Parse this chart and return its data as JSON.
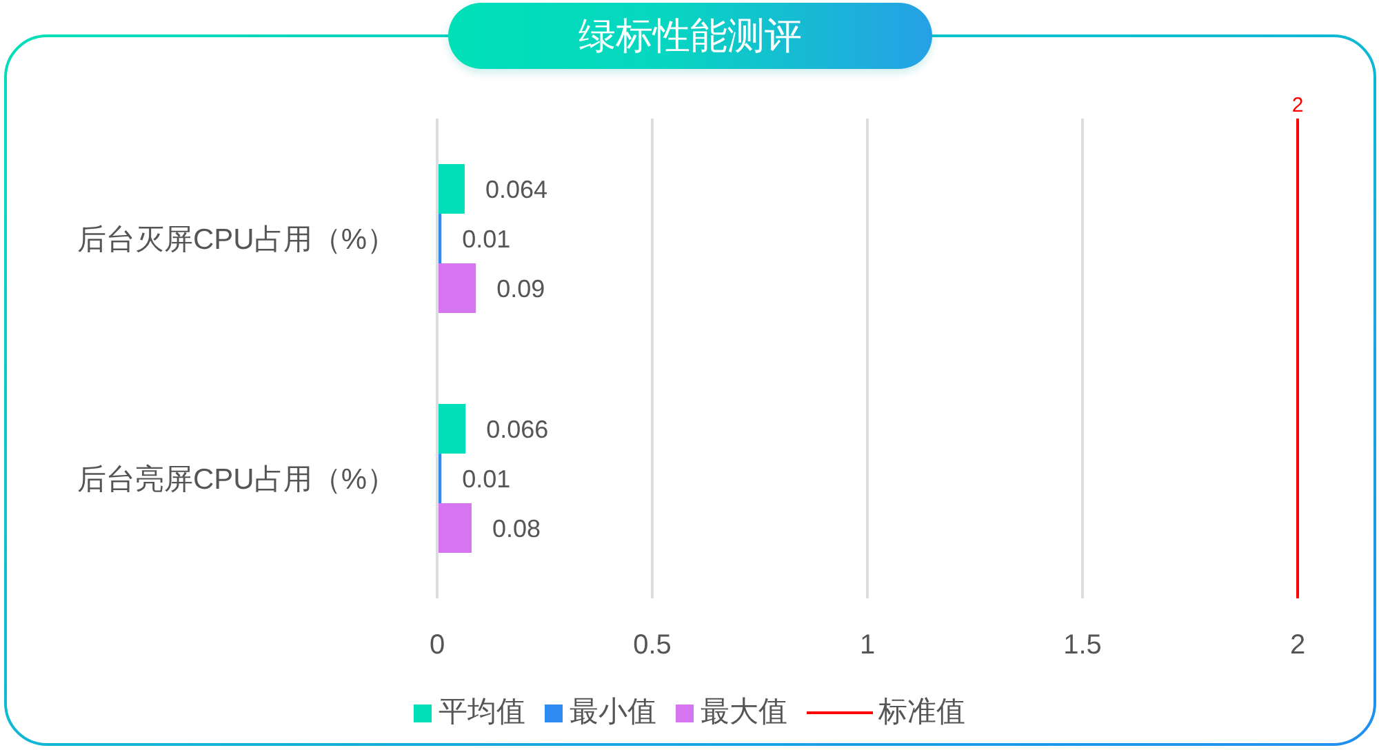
{
  "chart_data": {
    "type": "bar",
    "orientation": "horizontal",
    "title": "绿标性能测评",
    "categories": [
      "后台灭屏CPU占用（%）",
      "后台亮屏CPU占用（%）"
    ],
    "series": [
      {
        "name": "平均值",
        "color": "#00dfb8",
        "values": [
          0.064,
          0.066
        ]
      },
      {
        "name": "最小值",
        "color": "#2e8cf0",
        "values": [
          0.01,
          0.01
        ]
      },
      {
        "name": "最大值",
        "color": "#d575ef",
        "values": [
          0.09,
          0.08
        ]
      },
      {
        "name": "标准值",
        "type": "line",
        "color": "#ff0000",
        "values": [
          null,
          null
        ]
      }
    ],
    "xlim": [
      0,
      2
    ],
    "xticks": [
      0,
      0.5,
      1,
      1.5,
      2
    ],
    "grid": "x",
    "legend": "bottom",
    "data_labels": true,
    "ref_lines": [
      {
        "axis": "x",
        "value": 2,
        "label": "2",
        "color": "#ff0000"
      }
    ]
  }
}
